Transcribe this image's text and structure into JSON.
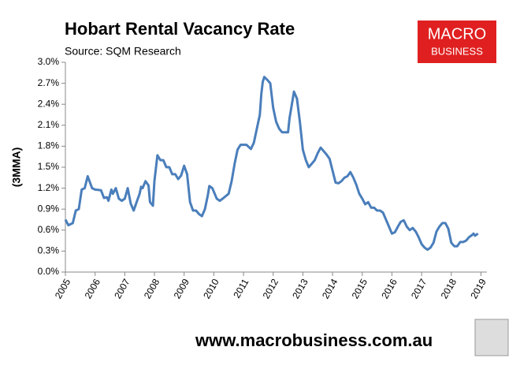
{
  "chart_data": {
    "type": "line",
    "title": "Hobart Rental Vacancy Rate",
    "subtitle": "Source: SQM Research",
    "y_label": "(3MMA)",
    "logo": {
      "line1": "MACRO",
      "line2": "BUSINESS"
    },
    "footer": "www.macrobusiness.com.au",
    "xlim": [
      2005,
      2019.2
    ],
    "xticks": [
      2005,
      2006,
      2007,
      2008,
      2009,
      2010,
      2011,
      2012,
      2013,
      2014,
      2015,
      2016,
      2017,
      2018,
      2019
    ],
    "ylim": [
      0,
      3.0
    ],
    "yticks": [
      {
        "value": 0,
        "label": "0.0%"
      },
      {
        "value": 0.3,
        "label": "0.3%"
      },
      {
        "value": 0.6,
        "label": "0.6%"
      },
      {
        "value": 0.9,
        "label": "0.9%"
      },
      {
        "value": 1.2,
        "label": "1.2%"
      },
      {
        "value": 1.5,
        "label": "1.5%"
      },
      {
        "value": 1.8,
        "label": "1.8%"
      },
      {
        "value": 2.1,
        "label": "2.1%"
      },
      {
        "value": 2.4,
        "label": "2.4%"
      },
      {
        "value": 2.7,
        "label": "2.7%"
      },
      {
        "value": 3.0,
        "label": "3.0%"
      }
    ],
    "grid": false,
    "series": [
      {
        "color": "#4a7ebb",
        "x": [
          2005.0,
          2005.1,
          2005.25,
          2005.35,
          2005.45,
          2005.55,
          2005.65,
          2005.75,
          2005.9,
          2006.0,
          2006.2,
          2006.3,
          2006.4,
          2006.45,
          2006.55,
          2006.6,
          2006.7,
          2006.8,
          2006.9,
          2007.0,
          2007.1,
          2007.2,
          2007.3,
          2007.4,
          2007.5,
          2007.55,
          2007.6,
          2007.7,
          2007.8,
          2007.85,
          2007.95,
          2008.0,
          2008.1,
          2008.2,
          2008.3,
          2008.4,
          2008.5,
          2008.6,
          2008.7,
          2008.8,
          2008.9,
          2009.0,
          2009.1,
          2009.2,
          2009.3,
          2009.4,
          2009.5,
          2009.6,
          2009.7,
          2009.8,
          2009.85,
          2009.95,
          2010.1,
          2010.2,
          2010.3,
          2010.5,
          2010.6,
          2010.7,
          2010.8,
          2010.9,
          2011.1,
          2011.2,
          2011.25,
          2011.35,
          2011.45,
          2011.55,
          2011.6,
          2011.65,
          2011.7,
          2011.8,
          2011.9,
          2012.0,
          2012.1,
          2012.2,
          2012.3,
          2012.5,
          2012.55,
          2012.65,
          2012.7,
          2012.8,
          2012.9,
          2013.0,
          2013.1,
          2013.2,
          2013.3,
          2013.4,
          2013.5,
          2013.6,
          2013.7,
          2013.8,
          2013.9,
          2014.0,
          2014.1,
          2014.2,
          2014.3,
          2014.4,
          2014.5,
          2014.6,
          2014.7,
          2014.8,
          2014.9,
          2015.0,
          2015.1,
          2015.2,
          2015.3,
          2015.4,
          2015.5,
          2015.6,
          2015.7,
          2015.8,
          2015.9,
          2016.0,
          2016.1,
          2016.2,
          2016.3,
          2016.4,
          2016.5,
          2016.6,
          2016.7,
          2016.8,
          2016.9,
          2017.0,
          2017.1,
          2017.2,
          2017.3,
          2017.4,
          2017.5,
          2017.6,
          2017.7,
          2017.8,
          2017.9,
          2018.0,
          2018.1,
          2018.2,
          2018.3,
          2018.4,
          2018.5,
          2018.6,
          2018.7,
          2018.75,
          2018.8,
          2018.9
        ],
        "values": [
          0.75,
          0.67,
          0.7,
          0.88,
          0.9,
          1.18,
          1.2,
          1.37,
          1.2,
          1.18,
          1.17,
          1.06,
          1.07,
          1.02,
          1.18,
          1.12,
          1.2,
          1.05,
          1.02,
          1.05,
          1.2,
          0.98,
          0.88,
          1.0,
          1.12,
          1.22,
          1.2,
          1.3,
          1.24,
          1.0,
          0.95,
          1.3,
          1.67,
          1.6,
          1.6,
          1.5,
          1.5,
          1.4,
          1.4,
          1.33,
          1.38,
          1.52,
          1.4,
          1.0,
          0.88,
          0.88,
          0.83,
          0.8,
          0.9,
          1.1,
          1.23,
          1.2,
          1.05,
          1.02,
          1.05,
          1.12,
          1.3,
          1.55,
          1.75,
          1.82,
          1.82,
          1.78,
          1.76,
          1.85,
          2.05,
          2.25,
          2.55,
          2.72,
          2.79,
          2.75,
          2.7,
          2.35,
          2.15,
          2.05,
          2.0,
          2.0,
          2.2,
          2.45,
          2.58,
          2.48,
          2.15,
          1.75,
          1.6,
          1.5,
          1.55,
          1.6,
          1.7,
          1.78,
          1.73,
          1.68,
          1.62,
          1.45,
          1.28,
          1.27,
          1.3,
          1.35,
          1.37,
          1.43,
          1.35,
          1.25,
          1.12,
          1.05,
          0.97,
          1.0,
          0.92,
          0.92,
          0.88,
          0.88,
          0.85,
          0.75,
          0.65,
          0.55,
          0.57,
          0.65,
          0.72,
          0.74,
          0.65,
          0.6,
          0.63,
          0.58,
          0.5,
          0.4,
          0.35,
          0.32,
          0.35,
          0.42,
          0.58,
          0.65,
          0.7,
          0.7,
          0.62,
          0.42,
          0.37,
          0.37,
          0.43,
          0.43,
          0.45,
          0.5,
          0.53,
          0.55,
          0.52,
          0.55
        ]
      }
    ]
  }
}
